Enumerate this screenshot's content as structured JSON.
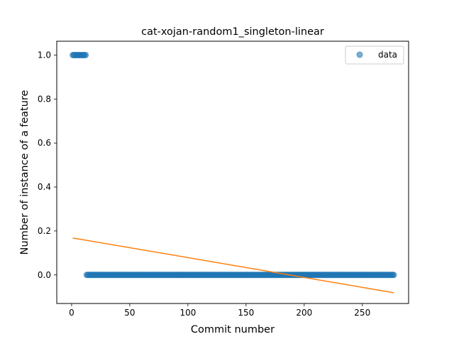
{
  "chart_data": {
    "type": "scatter",
    "title": "cat-xojan-random1_singleton-linear",
    "xlabel": "Commit number",
    "ylabel": "Number of instance of a feature",
    "xlim": [
      -12.8,
      289.8
    ],
    "ylim": [
      -0.13,
      1.063
    ],
    "xticks": [
      0,
      50,
      100,
      150,
      200,
      250
    ],
    "yticks": [
      0.0,
      0.2,
      0.4,
      0.6,
      0.8,
      1.0
    ],
    "xtick_labels": [
      "0",
      "50",
      "100",
      "150",
      "200",
      "250"
    ],
    "ytick_labels": [
      "0.0",
      "0.2",
      "0.4",
      "0.6",
      "0.8",
      "1.0"
    ],
    "legend": {
      "position": "top-right",
      "entries": [
        "data"
      ]
    },
    "grid": false,
    "series": [
      {
        "name": "data",
        "kind": "scatter",
        "color": "#1f77b4",
        "segments": [
          {
            "x_start": 1,
            "x_end": 12,
            "y": 1
          },
          {
            "x_start": 13,
            "x_end": 277,
            "y": 0
          }
        ]
      },
      {
        "kind": "line",
        "color": "#ff7f0e",
        "x": [
          1,
          277
        ],
        "y": [
          0.168,
          -0.081
        ]
      }
    ]
  }
}
